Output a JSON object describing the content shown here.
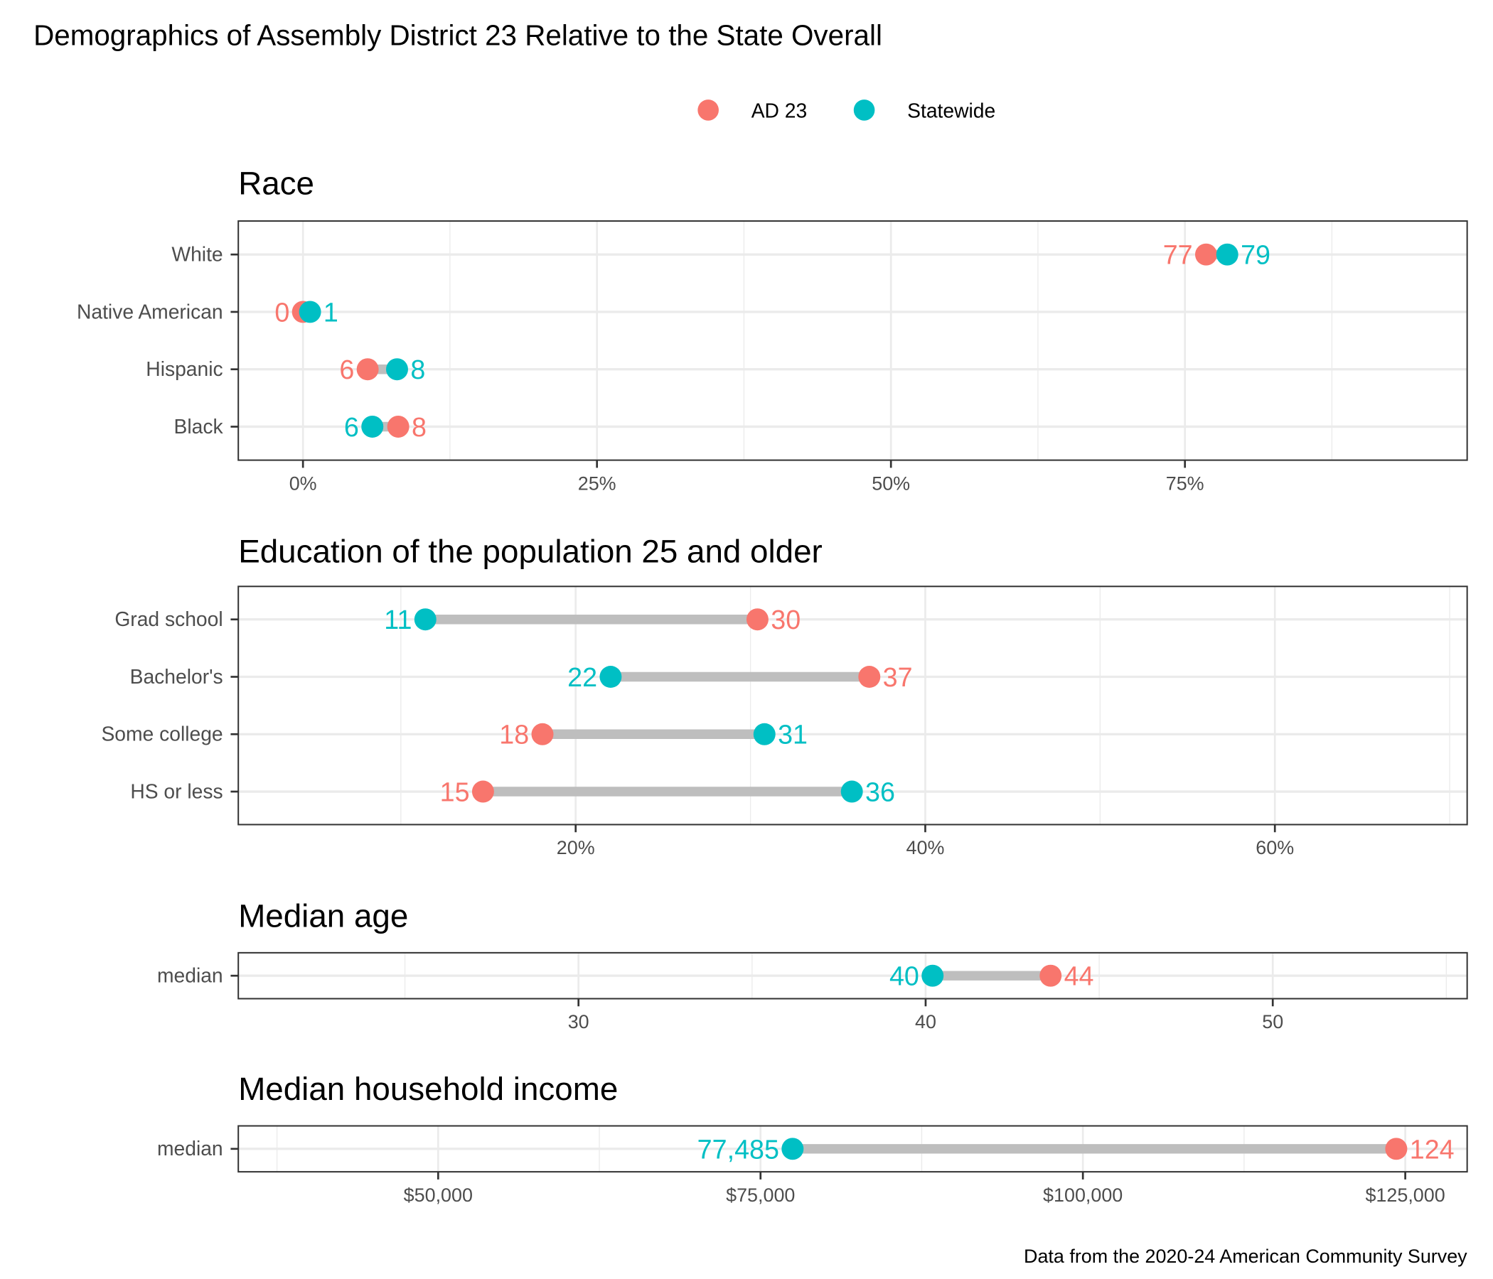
{
  "title": "Demographics of Assembly District 23 Relative to the State Overall",
  "caption": "Data from the 2020-24 American Community Survey",
  "colors": {
    "AD 23": "#F8766D",
    "Statewide": "#00BFC4",
    "segment": "#bebebe",
    "grid": "#ebebeb"
  },
  "legend": {
    "position": "top",
    "items": [
      "AD 23",
      "Statewide"
    ]
  },
  "chart_data": [
    {
      "type": "dumbbell",
      "title": "Race",
      "categories": [
        "White",
        "Native American",
        "Hispanic",
        "Black"
      ],
      "series": [
        {
          "name": "AD 23",
          "values": [
            76.8,
            0,
            5.5,
            8.1
          ],
          "labels": [
            "77",
            "0",
            "6",
            "8"
          ]
        },
        {
          "name": "Statewide",
          "values": [
            78.6,
            0.6,
            8.0,
            5.9
          ],
          "labels": [
            "79",
            "1",
            "8",
            "6"
          ]
        }
      ],
      "xlim": [
        -5.5,
        99
      ],
      "ticks": [
        0,
        25,
        50,
        75
      ],
      "tick_labels": [
        "0%",
        "25%",
        "50%",
        "75%"
      ],
      "minor_ticks": [
        12.5,
        37.5,
        62.5,
        87.5
      ],
      "grid": true
    },
    {
      "type": "dumbbell",
      "title": "Education of the population 25 and older",
      "categories": [
        "Grad school",
        "Bachelor's",
        "Some college",
        "HS or less"
      ],
      "series": [
        {
          "name": "AD 23",
          "values": [
            30.4,
            36.8,
            18.1,
            14.7
          ],
          "labels": [
            "30",
            "37",
            "18",
            "15"
          ]
        },
        {
          "name": "Statewide",
          "values": [
            11.4,
            22.0,
            30.8,
            35.8
          ],
          "labels": [
            "11",
            "22",
            "31",
            "36"
          ]
        }
      ],
      "xlim": [
        0.7,
        71
      ],
      "ticks": [
        20,
        40,
        60
      ],
      "tick_labels": [
        "20%",
        "40%",
        "60%"
      ],
      "minor_ticks": [
        10,
        30,
        50,
        70
      ],
      "grid": true
    },
    {
      "type": "dumbbell",
      "title": "Median age",
      "categories": [
        "median"
      ],
      "series": [
        {
          "name": "AD 23",
          "values": [
            43.6
          ],
          "labels": [
            "44"
          ]
        },
        {
          "name": "Statewide",
          "values": [
            40.2
          ],
          "labels": [
            "40"
          ]
        }
      ],
      "xlim": [
        20.2,
        55.6
      ],
      "ticks": [
        30,
        40,
        50
      ],
      "tick_labels": [
        "30",
        "40",
        "50"
      ],
      "minor_ticks": [
        25,
        35,
        45,
        55
      ],
      "grid": true
    },
    {
      "type": "dumbbell",
      "title": "Median household income",
      "categories": [
        "median"
      ],
      "series": [
        {
          "name": "AD 23",
          "values": [
            124300
          ],
          "labels": [
            "124"
          ]
        },
        {
          "name": "Statewide",
          "values": [
            77485
          ],
          "labels": [
            "77,485"
          ]
        }
      ],
      "xlim": [
        34500,
        129800
      ],
      "ticks": [
        50000,
        75000,
        100000,
        125000
      ],
      "tick_labels": [
        "$50,000",
        "$75,000",
        "$100,000",
        "$125,000"
      ],
      "minor_ticks": [
        37500,
        62500,
        87500,
        112500
      ],
      "grid": true
    }
  ]
}
